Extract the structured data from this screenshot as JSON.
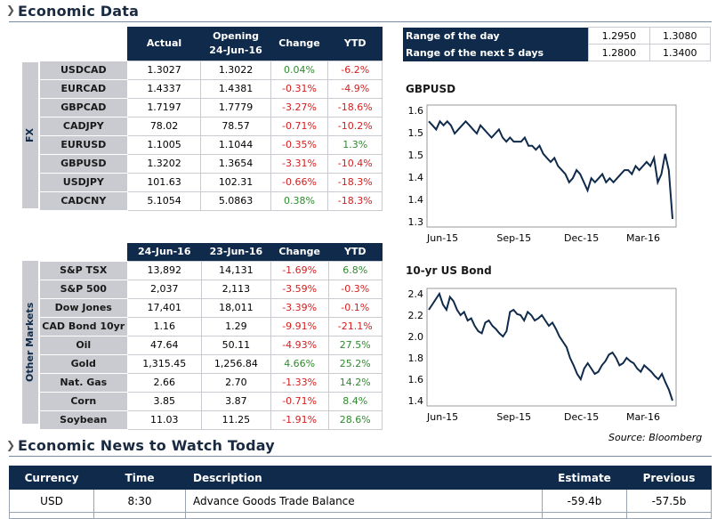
{
  "sections": {
    "economic_data": "Economic Data",
    "news": "Economic News to Watch Today"
  },
  "fx": {
    "side_label": "FX",
    "headers": [
      "Actual",
      "Opening\n24-Jun-16",
      "Change",
      "YTD"
    ],
    "rows": [
      {
        "name": "USDCAD",
        "actual": "1.3027",
        "opening": "1.3022",
        "change": "0.04%",
        "ytd": "-6.2%",
        "change_pos": true,
        "ytd_pos": false
      },
      {
        "name": "EURCAD",
        "actual": "1.4337",
        "opening": "1.4381",
        "change": "-0.31%",
        "ytd": "-4.9%",
        "change_pos": false,
        "ytd_pos": false
      },
      {
        "name": "GBPCAD",
        "actual": "1.7197",
        "opening": "1.7779",
        "change": "-3.27%",
        "ytd": "-18.6%",
        "change_pos": false,
        "ytd_pos": false
      },
      {
        "name": "CADJPY",
        "actual": "78.02",
        "opening": "78.57",
        "change": "-0.71%",
        "ytd": "-10.2%",
        "change_pos": false,
        "ytd_pos": false
      },
      {
        "name": "EURUSD",
        "actual": "1.1005",
        "opening": "1.1044",
        "change": "-0.35%",
        "ytd": "1.3%",
        "change_pos": false,
        "ytd_pos": true
      },
      {
        "name": "GBPUSD",
        "actual": "1.3202",
        "opening": "1.3654",
        "change": "-3.31%",
        "ytd": "-10.4%",
        "change_pos": false,
        "ytd_pos": false
      },
      {
        "name": "USDJPY",
        "actual": "101.63",
        "opening": "102.31",
        "change": "-0.66%",
        "ytd": "-18.3%",
        "change_pos": false,
        "ytd_pos": false
      },
      {
        "name": "CADCNY",
        "actual": "5.1054",
        "opening": "5.0863",
        "change": "0.38%",
        "ytd": "-18.3%",
        "change_pos": true,
        "ytd_pos": false
      }
    ]
  },
  "other": {
    "side_label": "Other Markets",
    "headers": [
      "24-Jun-16",
      "23-Jun-16",
      "Change",
      "YTD"
    ],
    "rows": [
      {
        "name": "S&P TSX",
        "a": "13,892",
        "b": "14,131",
        "change": "-1.69%",
        "ytd": "6.8%",
        "change_pos": false,
        "ytd_pos": true
      },
      {
        "name": "S&P 500",
        "a": "2,037",
        "b": "2,113",
        "change": "-3.59%",
        "ytd": "-0.3%",
        "change_pos": false,
        "ytd_pos": false
      },
      {
        "name": "Dow Jones",
        "a": "17,401",
        "b": "18,011",
        "change": "-3.39%",
        "ytd": "-0.1%",
        "change_pos": false,
        "ytd_pos": false
      },
      {
        "name": "CAD Bond 10yr",
        "a": "1.16",
        "b": "1.29",
        "change": "-9.91%",
        "ytd": "-21.1%",
        "change_pos": false,
        "ytd_pos": false
      },
      {
        "name": "Oil",
        "a": "47.64",
        "b": "50.11",
        "change": "-4.93%",
        "ytd": "27.5%",
        "change_pos": false,
        "ytd_pos": true
      },
      {
        "name": "Gold",
        "a": "1,315.45",
        "b": "1,256.84",
        "change": "4.66%",
        "ytd": "25.2%",
        "change_pos": true,
        "ytd_pos": true
      },
      {
        "name": "Nat. Gas",
        "a": "2.66",
        "b": "2.70",
        "change": "-1.33%",
        "ytd": "14.2%",
        "change_pos": false,
        "ytd_pos": true
      },
      {
        "name": "Corn",
        "a": "3.85",
        "b": "3.87",
        "change": "-0.71%",
        "ytd": "8.4%",
        "change_pos": false,
        "ytd_pos": true
      },
      {
        "name": "Soybean",
        "a": "11.03",
        "b": "11.25",
        "change": "-1.91%",
        "ytd": "28.6%",
        "change_pos": false,
        "ytd_pos": true
      }
    ]
  },
  "range": {
    "rows": [
      {
        "label": "Range of the day",
        "low": "1.2950",
        "high": "1.3080"
      },
      {
        "label": "Range of the next 5 days",
        "low": "1.2800",
        "high": "1.3400"
      }
    ]
  },
  "charts": {
    "gbpusd": {
      "title": "GBPUSD",
      "y_ticks": [
        "1.6",
        "1.5",
        "1.5",
        "1.4",
        "1.4",
        "1.3"
      ],
      "x_ticks": [
        "Jun-15",
        "Sep-15",
        "Dec-15",
        "Mar-16"
      ]
    },
    "us10": {
      "title": "10-yr US Bond",
      "y_ticks": [
        "2.4",
        "2.2",
        "2.0",
        "1.8",
        "1.6",
        "1.4"
      ],
      "x_ticks": [
        "Jun-15",
        "Sep-15",
        "Dec-15",
        "Mar-16"
      ],
      "source": "Source: Bloomberg"
    }
  },
  "chart_data": [
    {
      "type": "line",
      "title": "GBPUSD",
      "xlabel": "",
      "ylabel": "",
      "ylim": [
        1.3,
        1.6
      ],
      "x_tick_labels": [
        "Jun-15",
        "Sep-15",
        "Dec-15",
        "Mar-16"
      ],
      "y_tick_labels": [
        "1.6",
        "1.5",
        "1.5",
        "1.4",
        "1.4",
        "1.3"
      ],
      "series": [
        {
          "values": [
            1.56,
            1.55,
            1.54,
            1.56,
            1.55,
            1.56,
            1.55,
            1.53,
            1.54,
            1.55,
            1.56,
            1.55,
            1.54,
            1.53,
            1.55,
            1.54,
            1.53,
            1.52,
            1.53,
            1.54,
            1.52,
            1.51,
            1.52,
            1.51,
            1.51,
            1.51,
            1.52,
            1.5,
            1.5,
            1.49,
            1.5,
            1.48,
            1.47,
            1.46,
            1.47,
            1.45,
            1.44,
            1.43,
            1.41,
            1.42,
            1.44,
            1.43,
            1.41,
            1.39,
            1.42,
            1.41,
            1.42,
            1.43,
            1.41,
            1.42,
            1.41,
            1.42,
            1.43,
            1.44,
            1.44,
            1.43,
            1.45,
            1.44,
            1.45,
            1.46,
            1.45,
            1.47,
            1.41,
            1.43,
            1.48,
            1.44,
            1.32
          ]
        }
      ]
    },
    {
      "type": "line",
      "title": "10-yr US Bond",
      "xlabel": "",
      "ylabel": "",
      "ylim": [
        1.4,
        2.5
      ],
      "x_tick_labels": [
        "Jun-15",
        "Sep-15",
        "Dec-15",
        "Mar-16"
      ],
      "y_tick_labels": [
        "2.4",
        "2.2",
        "2.0",
        "1.8",
        "1.6",
        "1.4"
      ],
      "series": [
        {
          "values": [
            2.3,
            2.35,
            2.4,
            2.45,
            2.35,
            2.3,
            2.42,
            2.38,
            2.3,
            2.25,
            2.28,
            2.2,
            2.22,
            2.15,
            2.1,
            2.08,
            2.18,
            2.2,
            2.15,
            2.12,
            2.08,
            2.05,
            2.1,
            2.28,
            2.3,
            2.26,
            2.25,
            2.2,
            2.28,
            2.25,
            2.2,
            2.22,
            2.25,
            2.2,
            2.15,
            2.18,
            2.12,
            2.05,
            2.0,
            1.95,
            1.85,
            1.78,
            1.7,
            1.65,
            1.75,
            1.8,
            1.75,
            1.7,
            1.72,
            1.78,
            1.82,
            1.88,
            1.9,
            1.85,
            1.78,
            1.8,
            1.85,
            1.82,
            1.8,
            1.75,
            1.72,
            1.78,
            1.75,
            1.72,
            1.68,
            1.65,
            1.7,
            1.62,
            1.55,
            1.45
          ]
        }
      ]
    }
  ],
  "news": {
    "headers": {
      "currency": "Currency",
      "time": "Time",
      "description": "Description",
      "estimate": "Estimate",
      "previous": "Previous"
    },
    "rows": [
      {
        "currency": "USD",
        "time": "8:30",
        "description": "Advance Goods Trade Balance",
        "estimate": "-59.4b",
        "previous": "-57.5b"
      }
    ]
  }
}
